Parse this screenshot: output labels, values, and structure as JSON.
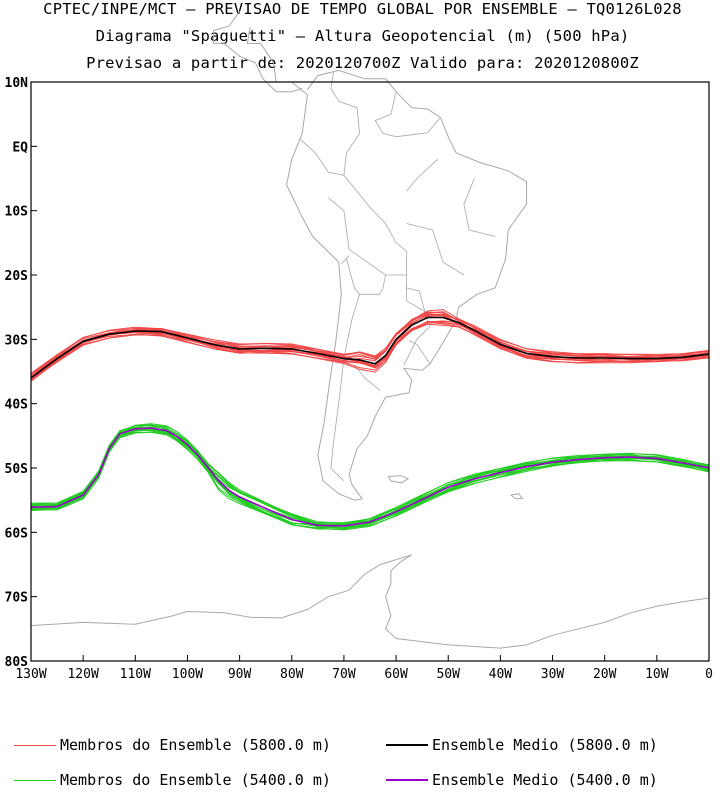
{
  "header": {
    "line1": "CPTEC/INPE/MCT — PREVISAO DE TEMPO GLOBAL POR ENSEMBLE — TQ0126L028",
    "line2": "Diagrama \"Spaguetti\" — Altura Geopotencial (m) (500 hPa)",
    "line3": "Previsao a partir de: 2020120700Z  Valido para: 2020120800Z"
  },
  "colors": {
    "member_5800": "#f04848",
    "mean_5800": "#000000",
    "member_5400": "#22cc22",
    "mean_5400": "#9900cc",
    "coast": "#a8a8a8"
  },
  "axes": {
    "lat_labels": [
      "10N",
      "EQ",
      "10S",
      "20S",
      "30S",
      "40S",
      "50S",
      "60S",
      "70S",
      "80S"
    ],
    "lon_labels": [
      "130W",
      "120W",
      "110W",
      "100W",
      "90W",
      "80W",
      "70W",
      "60W",
      "50W",
      "40W",
      "30W",
      "20W",
      "10W",
      "0"
    ]
  },
  "legend": {
    "member_5800_label": "Membros do Ensemble (5800.0 m)",
    "mean_5800_label": "Ensemble Medio (5800.0 m)",
    "member_5400_label": "Membros do Ensemble (5400.0 m)",
    "mean_5400_label": "Ensemble Medio (5400.0 m)"
  },
  "chart_data": {
    "type": "line",
    "x_unit": "degrees longitude (negative = W)",
    "y_unit": "degrees latitude (negative = S)",
    "xlim": [
      -130,
      0
    ],
    "ylim": [
      -80,
      10
    ],
    "series": [
      {
        "name": "Ensemble Medio (5800.0 m)",
        "x": [
          -130,
          -125,
          -120,
          -115,
          -110,
          -105,
          -100,
          -95,
          -90,
          -85,
          -80,
          -75,
          -70,
          -67,
          -64,
          -62,
          -60,
          -57,
          -54,
          -51,
          -48,
          -45,
          -40,
          -35,
          -30,
          -25,
          -20,
          -15,
          -10,
          -5,
          0
        ],
        "y": [
          -36.0,
          -33.0,
          -30.3,
          -29.2,
          -28.7,
          -28.8,
          -29.8,
          -30.8,
          -31.5,
          -31.4,
          -31.5,
          -32.2,
          -33.0,
          -33.2,
          -33.8,
          -32.5,
          -30.0,
          -27.8,
          -26.6,
          -26.6,
          -27.4,
          -28.6,
          -30.8,
          -32.2,
          -32.7,
          -32.9,
          -32.9,
          -33.0,
          -33.0,
          -32.8,
          -32.3
        ]
      },
      {
        "name": "Ensemble Medio (5400.0 m)",
        "x": [
          -130,
          -125,
          -120,
          -117,
          -115,
          -113,
          -110,
          -107,
          -104,
          -102,
          -100,
          -98,
          -96,
          -94,
          -92,
          -90,
          -85,
          -80,
          -75,
          -70,
          -65,
          -60,
          -55,
          -50,
          -45,
          -40,
          -35,
          -30,
          -25,
          -20,
          -15,
          -10,
          -5,
          0
        ],
        "y": [
          -56.1,
          -56.0,
          -54.2,
          -51.0,
          -47.0,
          -44.7,
          -43.9,
          -43.8,
          -44.2,
          -45.1,
          -46.4,
          -48.0,
          -50.0,
          -52.0,
          -53.5,
          -54.5,
          -56.3,
          -58.0,
          -58.9,
          -59.0,
          -58.4,
          -56.8,
          -54.9,
          -53.0,
          -51.7,
          -50.7,
          -49.8,
          -49.1,
          -48.7,
          -48.4,
          -48.3,
          -48.5,
          -49.2,
          -50.0
        ]
      }
    ]
  }
}
